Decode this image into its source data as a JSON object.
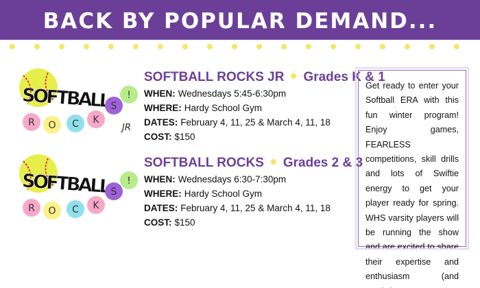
{
  "header": {
    "title": "BACK BY POPULAR DEMAND..."
  },
  "programs": [
    {
      "logo": {
        "word": "SOFTBALL",
        "letters": [
          "R",
          "O",
          "C",
          "K",
          "S",
          "!"
        ],
        "suffix": "JR"
      },
      "name": "SOFTBALL ROCKS JR",
      "grades": "Grades K & 1",
      "details": [
        {
          "label": "WHEN:",
          "text": "Wednesdays 5:45-6:30pm"
        },
        {
          "label": "WHERE:",
          "text": "Hardy School Gym"
        },
        {
          "label": "DATES:",
          "text": "February 4, 11, 25 & March 4, 11, 18"
        },
        {
          "label": "COST:",
          "text": "$150"
        }
      ]
    },
    {
      "logo": {
        "word": "SOFTBALL",
        "letters": [
          "R",
          "O",
          "C",
          "K",
          "S",
          "!"
        ]
      },
      "name": "SOFTBALL ROCKS",
      "grades": "Grades 2 & 3",
      "details": [
        {
          "label": "WHEN:",
          "text": "Wednesdays 6:30-7:30pm"
        },
        {
          "label": "WHERE:",
          "text": "Hardy School Gym"
        },
        {
          "label": "DATES:",
          "text": "February 4, 11, 25 & March 4, 11, 18"
        },
        {
          "label": "COST:",
          "text": "$150"
        }
      ]
    }
  ],
  "description": "Get ready to enter your Softball ERA with this fun winter program! Enjoy games, FEARLESS competitions, skill drills and lots of Swiftie energy to get your player ready for spring. WHS varsity players will be running the show and are excited to share their expertise and enthusiasm (and music!)."
}
